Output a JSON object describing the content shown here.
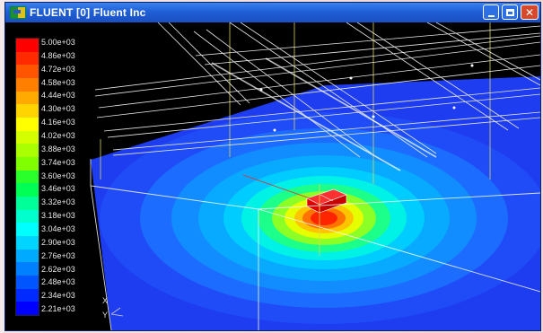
{
  "window": {
    "title": "FLUENT [0] Fluent Inc"
  },
  "colorbar": {
    "labels": [
      "5.00e+03",
      "4.86e+03",
      "4.72e+03",
      "4.58e+03",
      "4.44e+03",
      "4.30e+03",
      "4.16e+03",
      "4.02e+03",
      "3.88e+03",
      "3.74e+03",
      "3.60e+03",
      "3.46e+03",
      "3.32e+03",
      "3.18e+03",
      "3.04e+03",
      "2.90e+03",
      "2.76e+03",
      "2.62e+03",
      "2.48e+03",
      "2.34e+03",
      "2.21e+03"
    ],
    "colors": [
      "#ff0000",
      "#ff2a00",
      "#ff5500",
      "#ff7f00",
      "#ffaa00",
      "#ffd400",
      "#ffff00",
      "#d4ff00",
      "#aaff00",
      "#7fff00",
      "#2bff2b",
      "#00ff55",
      "#00ff99",
      "#00ffcc",
      "#00ffff",
      "#00d4ff",
      "#00aaff",
      "#007fff",
      "#0055ff",
      "#002aff",
      "#0000ff"
    ]
  },
  "axes": {
    "x": "X",
    "y": "Y"
  }
}
